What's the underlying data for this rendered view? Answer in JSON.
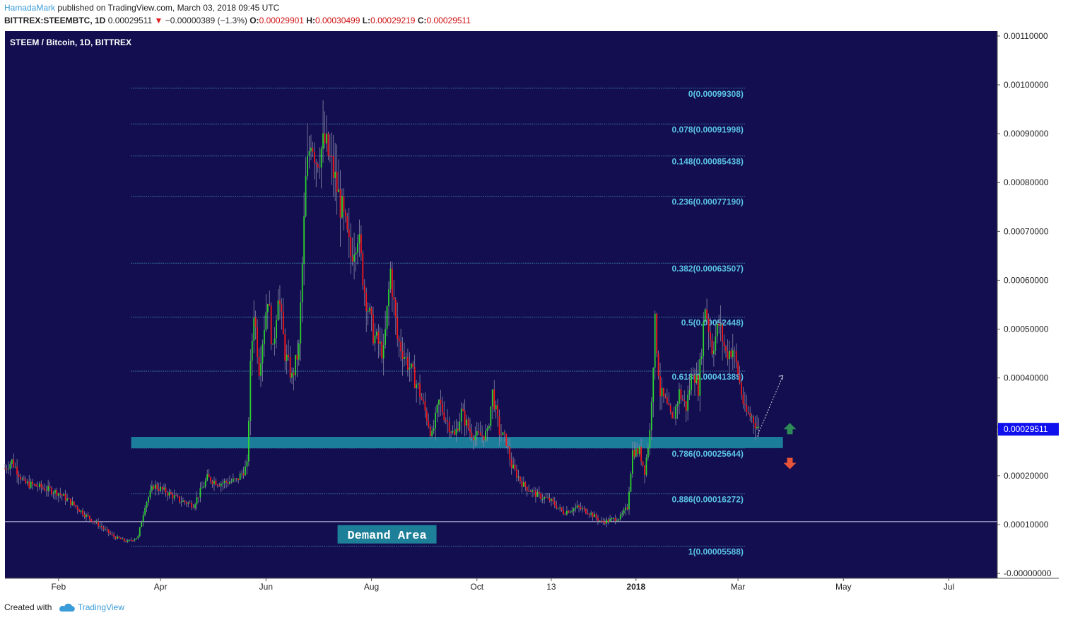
{
  "header": {
    "author": "HamadaMark",
    "published": "published on TradingView.com, March 03, 2018 09:45 UTC",
    "symbol": "BITTREX:STEEMBTC, 1D",
    "last": "0.00029511",
    "change": "−0.00000389 (−1.3%)",
    "o_label": "O:",
    "o": "0.00029901",
    "h_label": "H:",
    "h": "0.00030499",
    "l_label": "L:",
    "l": "0.00029219",
    "c_label": "C:",
    "c": "0.00029511"
  },
  "footer": {
    "created_with": "Created with",
    "brand": "TradingView"
  },
  "colors": {
    "background": "#120e4f",
    "up": "#2fd32f",
    "down": "#f21a1a",
    "fib": "#5bc3e6",
    "zone": "#1e90a8",
    "current_price": "#1010ee",
    "arrow_up": "#2e8b57",
    "arrow_down": "#e8533a"
  },
  "chart_data": {
    "type": "candlestick",
    "title": "STEEM / Bitcoin, 1D, BITTREX",
    "ylim": [
      -1e-05,
      0.00111
    ],
    "y_ticks": [
      "0.00110000",
      "0.00100000",
      "0.00090000",
      "0.00080000",
      "0.00070000",
      "0.00060000",
      "0.00050000",
      "0.00040000",
      "0.00030000",
      "0.00020000",
      "0.00010000",
      "-0.00000000"
    ],
    "y_tick_values": [
      0.0011,
      0.001,
      0.0009,
      0.0008,
      0.0007,
      0.0006,
      0.0005,
      0.0004,
      0.0003,
      0.0002,
      0.0001,
      0
    ],
    "x_ticks": [
      "Feb",
      "Apr",
      "Jun",
      "Aug",
      "Oct",
      "13",
      "2018",
      "Mar",
      "May",
      "Jul"
    ],
    "x_tick_dates": [
      "2017-02-01",
      "2017-04-01",
      "2017-06-01",
      "2017-08-01",
      "2017-10-01",
      "2017-11-13",
      "2018-01-01",
      "2018-03-01",
      "2018-05-01",
      "2018-07-01"
    ],
    "x_bold": [
      "2018"
    ],
    "fib_levels": [
      {
        "label": "0(0.00099308)",
        "value": 0.00099308
      },
      {
        "label": "0.078(0.00091998)",
        "value": 0.00091998
      },
      {
        "label": "0.148(0.00085438)",
        "value": 0.00085438
      },
      {
        "label": "0.236(0.00077190)",
        "value": 0.0007719
      },
      {
        "label": "0.382(0.00063507)",
        "value": 0.00063507
      },
      {
        "label": "0.5(0.00052448)",
        "value": 0.00052448
      },
      {
        "label": "0.618(0.00041389)",
        "value": 0.00041389
      },
      {
        "label": "0.786(0.00025644)",
        "value": 0.00025644
      },
      {
        "label": "0.886(0.00016272)",
        "value": 0.00016272
      },
      {
        "label": "1(0.00005588)",
        "value": 5.588e-05
      }
    ],
    "fib_start": "2017-03-15",
    "fib_end": "2018-03-05",
    "demand_zone": {
      "label": "Demand Area",
      "from": "2017-03-15",
      "to": "2018-03-27",
      "low": 0.00025644,
      "high": 0.00027936
    },
    "horizontal_line": 0.000106,
    "current_price": {
      "label": "0.00029511",
      "value": 0.00029511
    },
    "projection": {
      "from_date": "2018-03-12",
      "from_value": 0.00028,
      "to_date": "2018-03-27",
      "to_value": 0.000405
    },
    "price_path": [
      [
        "2017-01-01",
        0.000215
      ],
      [
        "2017-01-05",
        0.00023
      ],
      [
        "2017-01-12",
        0.000185
      ],
      [
        "2017-01-20",
        0.000178
      ],
      [
        "2017-02-01",
        0.000165
      ],
      [
        "2017-02-10",
        0.00014
      ],
      [
        "2017-02-17",
        0.000118
      ],
      [
        "2017-02-24",
        0.0001
      ],
      [
        "2017-03-05",
        7.5e-05
      ],
      [
        "2017-03-13",
        6.5e-05
      ],
      [
        "2017-03-19",
        7.5e-05
      ],
      [
        "2017-03-23",
        0.00014
      ],
      [
        "2017-03-28",
        0.00018
      ],
      [
        "2017-04-05",
        0.000165
      ],
      [
        "2017-04-12",
        0.00015
      ],
      [
        "2017-04-20",
        0.00014
      ],
      [
        "2017-04-28",
        0.000195
      ],
      [
        "2017-05-05",
        0.000185
      ],
      [
        "2017-05-15",
        0.00019
      ],
      [
        "2017-05-21",
        0.00022
      ],
      [
        "2017-05-23",
        0.00042
      ],
      [
        "2017-05-25",
        0.00054
      ],
      [
        "2017-05-28",
        0.00042
      ],
      [
        "2017-06-02",
        0.00057
      ],
      [
        "2017-06-05",
        0.00045
      ],
      [
        "2017-06-08",
        0.00058
      ],
      [
        "2017-06-12",
        0.00045
      ],
      [
        "2017-06-16",
        0.0004
      ],
      [
        "2017-06-20",
        0.00046
      ],
      [
        "2017-06-24",
        0.0008
      ],
      [
        "2017-06-27",
        0.0009
      ],
      [
        "2017-06-30",
        0.00085
      ],
      [
        "2017-07-05",
        0.00088
      ],
      [
        "2017-07-10",
        0.00082
      ],
      [
        "2017-07-15",
        0.00074
      ],
      [
        "2017-07-20",
        0.00065
      ],
      [
        "2017-07-24",
        0.0007
      ],
      [
        "2017-07-28",
        0.00058
      ],
      [
        "2017-08-02",
        0.00049
      ],
      [
        "2017-08-08",
        0.00045
      ],
      [
        "2017-08-12",
        0.00062
      ],
      [
        "2017-08-16",
        0.00048
      ],
      [
        "2017-08-22",
        0.00043
      ],
      [
        "2017-08-28",
        0.00038
      ],
      [
        "2017-09-02",
        0.00032
      ],
      [
        "2017-09-05",
        0.00028
      ],
      [
        "2017-09-09",
        0.00035
      ],
      [
        "2017-09-14",
        0.00031
      ],
      [
        "2017-09-18",
        0.00028
      ],
      [
        "2017-09-22",
        0.00033
      ],
      [
        "2017-09-27",
        0.00029
      ],
      [
        "2017-10-01",
        0.00028
      ],
      [
        "2017-10-07",
        0.000285
      ],
      [
        "2017-10-10",
        0.00037
      ],
      [
        "2017-10-14",
        0.00029
      ],
      [
        "2017-10-18",
        0.00027
      ],
      [
        "2017-10-21",
        0.00022
      ],
      [
        "2017-10-28",
        0.00018
      ],
      [
        "2017-11-05",
        0.00016
      ],
      [
        "2017-11-12",
        0.00015
      ],
      [
        "2017-11-20",
        0.000125
      ],
      [
        "2017-11-28",
        0.000135
      ],
      [
        "2017-12-05",
        0.000125
      ],
      [
        "2017-12-12",
        0.000105
      ],
      [
        "2017-12-18",
        0.00011
      ],
      [
        "2017-12-23",
        0.000115
      ],
      [
        "2017-12-27",
        0.000135
      ],
      [
        "2017-12-30",
        0.00025
      ],
      [
        "2018-01-03",
        0.00025
      ],
      [
        "2018-01-06",
        0.00021
      ],
      [
        "2018-01-09",
        0.00029
      ],
      [
        "2018-01-12",
        0.00051
      ],
      [
        "2018-01-15",
        0.00037
      ],
      [
        "2018-01-18",
        0.00035
      ],
      [
        "2018-01-22",
        0.00031
      ],
      [
        "2018-01-26",
        0.00037
      ],
      [
        "2018-01-30",
        0.00034
      ],
      [
        "2018-02-03",
        0.00042
      ],
      [
        "2018-02-06",
        0.00038
      ],
      [
        "2018-02-10",
        0.00055
      ],
      [
        "2018-02-14",
        0.00046
      ],
      [
        "2018-02-18",
        0.00051
      ],
      [
        "2018-02-22",
        0.00045
      ],
      [
        "2018-02-26",
        0.00046
      ],
      [
        "2018-03-01",
        0.00041
      ],
      [
        "2018-03-05",
        0.00033
      ],
      [
        "2018-03-09",
        0.00032
      ],
      [
        "2018-03-13",
        0.000295
      ]
    ]
  }
}
